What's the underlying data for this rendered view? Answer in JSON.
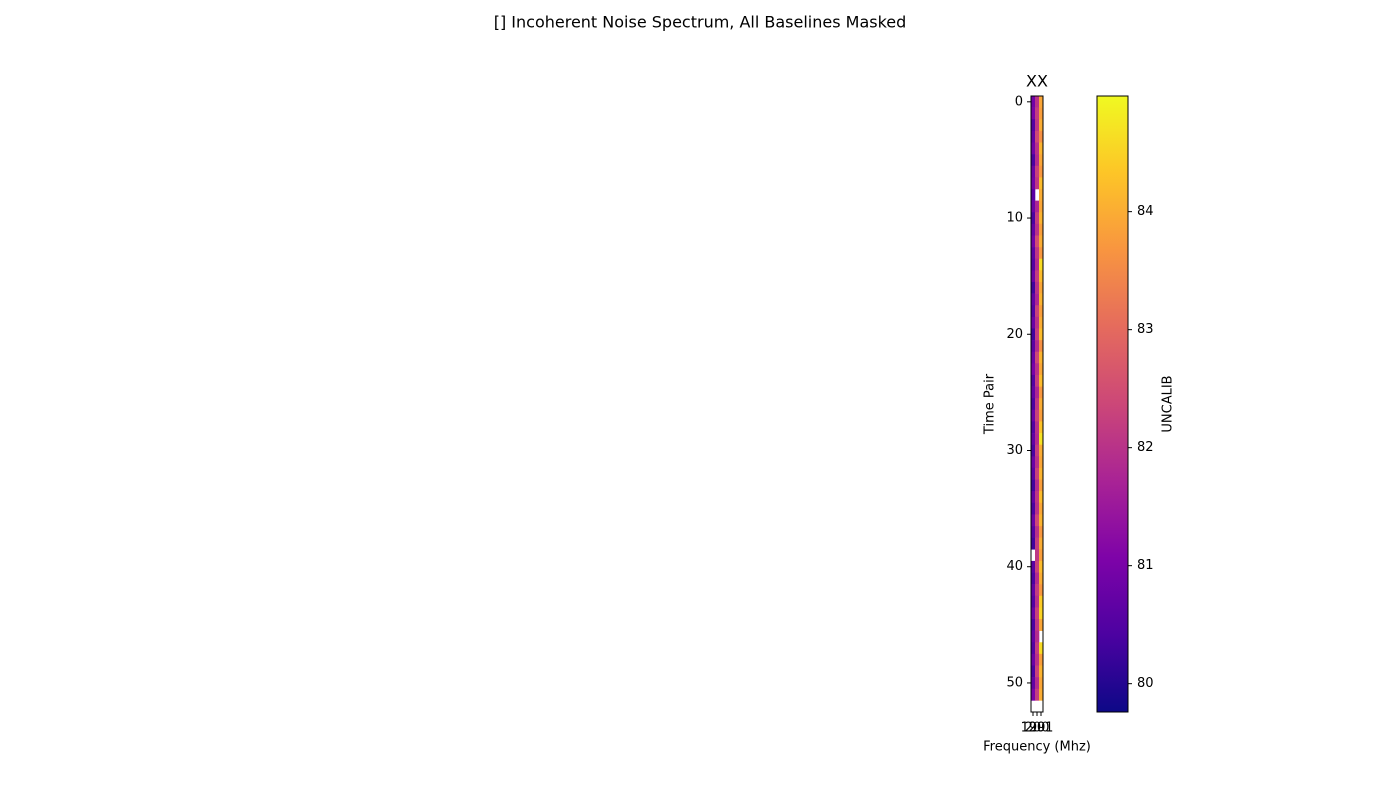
{
  "chart_data": {
    "type": "heatmap",
    "title": "[] Incoherent Noise Spectrum, All Baselines Masked",
    "subtitle": "XX",
    "xlabel": "Frequency (Mhz)",
    "ylabel": "Time Pair",
    "categories": [
      "199",
      "200",
      "201"
    ],
    "ylim": [
      -0.5,
      52.5
    ],
    "y_inverted": true,
    "yticks": [
      0,
      10,
      20,
      30,
      40,
      50
    ],
    "colormap": "plasma",
    "colorbar": {
      "label": "UNCALIB",
      "lim": [
        79.76,
        84.98
      ],
      "ticks": [
        80,
        81,
        82,
        83,
        84
      ]
    },
    "z": [
      [
        80.9,
        82.0,
        83.9
      ],
      [
        81.0,
        82.2,
        83.8
      ],
      [
        80.5,
        82.1,
        84.0
      ],
      [
        80.7,
        82.4,
        83.6
      ],
      [
        80.9,
        82.0,
        84.1
      ],
      [
        80.4,
        81.9,
        83.9
      ],
      [
        80.8,
        82.3,
        83.7
      ],
      [
        80.9,
        82.1,
        84.2
      ],
      [
        80.6,
        null,
        84.0
      ],
      [
        80.8,
        81.8,
        83.9
      ],
      [
        80.4,
        82.2,
        84.1
      ],
      [
        80.7,
        82.0,
        83.8
      ],
      [
        80.9,
        82.5,
        84.0
      ],
      [
        80.6,
        82.1,
        83.7
      ],
      [
        80.5,
        81.9,
        84.6
      ],
      [
        80.8,
        82.2,
        84.2
      ],
      [
        80.3,
        82.0,
        83.9
      ],
      [
        80.7,
        81.8,
        84.1
      ],
      [
        80.5,
        82.3,
        83.8
      ],
      [
        80.8,
        82.0,
        84.0
      ],
      [
        80.3,
        82.2,
        84.2
      ],
      [
        80.6,
        81.9,
        83.6
      ],
      [
        80.8,
        82.4,
        84.1
      ],
      [
        81.0,
        82.0,
        83.9
      ],
      [
        80.5,
        82.2,
        84.2
      ],
      [
        80.7,
        81.8,
        83.7
      ],
      [
        80.4,
        82.1,
        84.0
      ],
      [
        80.8,
        82.3,
        83.8
      ],
      [
        80.5,
        82.0,
        84.3
      ],
      [
        80.7,
        81.9,
        84.7
      ],
      [
        80.4,
        82.2,
        84.0
      ],
      [
        80.8,
        82.0,
        83.9
      ],
      [
        80.6,
        82.3,
        84.1
      ],
      [
        80.3,
        81.9,
        83.8
      ],
      [
        80.7,
        82.1,
        84.2
      ],
      [
        80.4,
        82.0,
        83.9
      ],
      [
        80.8,
        82.4,
        84.1
      ],
      [
        80.5,
        82.0,
        83.7
      ],
      [
        80.3,
        82.2,
        84.0
      ],
      [
        null,
        82.1,
        83.8
      ],
      [
        80.6,
        82.3,
        84.2
      ],
      [
        80.4,
        81.9,
        84.0
      ],
      [
        80.7,
        82.2,
        83.7
      ],
      [
        80.5,
        82.0,
        84.4
      ],
      [
        80.8,
        82.3,
        84.5
      ],
      [
        80.4,
        82.1,
        83.9
      ],
      [
        80.7,
        81.9,
        null
      ],
      [
        80.5,
        82.2,
        84.6
      ],
      [
        80.8,
        82.0,
        83.8
      ],
      [
        80.4,
        82.3,
        84.1
      ],
      [
        80.7,
        81.9,
        83.9
      ],
      [
        81.0,
        82.2,
        84.0
      ],
      [
        null,
        null,
        null
      ]
    ]
  }
}
